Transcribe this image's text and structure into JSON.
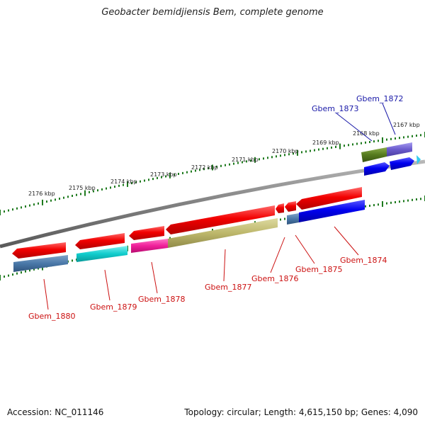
{
  "title": "Geobacter bemidjiensis Bem, complete genome",
  "footer": {
    "accession": "Accession: NC_011146",
    "summary": "Topology: circular; Length: 4,615,150 bp; Genes: 4,090"
  },
  "colors": {
    "backbone": "#888888",
    "ticks": "#1e7a1e",
    "label_forward": "#1a1aa8",
    "label_reverse": "#cc1111"
  },
  "scale_labels": [
    "2176 kbp",
    "2175 kbp",
    "2174 kbp",
    "2173 kbp",
    "2172 kbp",
    "2171 kbp",
    "2170 kbp",
    "2169 kbp",
    "2168 kbp",
    "2167 kbp"
  ],
  "gene_labels": {
    "forward": [
      "Gbem_1873",
      "Gbem_1872"
    ],
    "reverse": [
      "Gbem_1880",
      "Gbem_1879",
      "Gbem_1878",
      "Gbem_1877",
      "Gbem_1876",
      "Gbem_1875",
      "Gbem_1874"
    ]
  }
}
